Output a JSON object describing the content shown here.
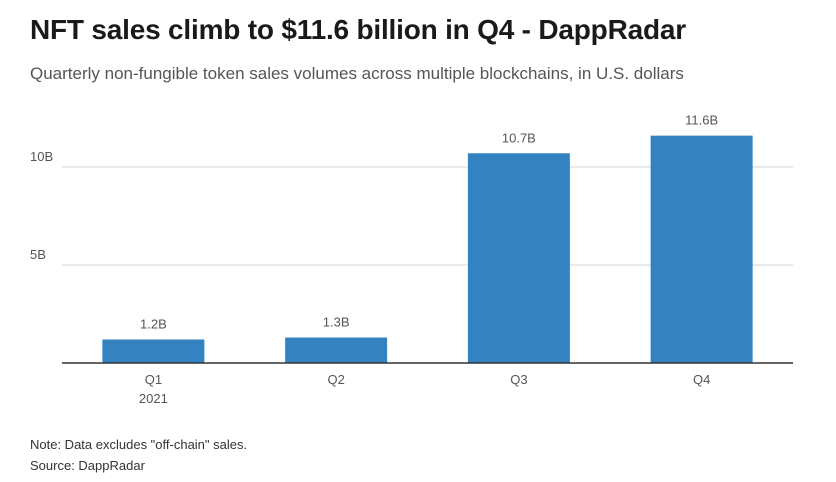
{
  "header": {
    "title": "NFT sales climb to $11.6 billion in Q4 - DappRadar",
    "subtitle": "Quarterly non-fungible token sales volumes across multiple blockchains, in U.S. dollars"
  },
  "footer": {
    "note": "Note: Data excludes \"off-chain\" sales.",
    "source": "Source: DappRadar"
  },
  "colors": {
    "bar": "#3482bf",
    "grid": "#d6d6d6",
    "axis": "#333333",
    "label": "#555555"
  },
  "chart_data": {
    "type": "bar",
    "title": "NFT sales climb to $11.6 billion in Q4 - DappRadar",
    "xlabel": "",
    "ylabel": "",
    "categories": [
      "Q1",
      "Q2",
      "Q3",
      "Q4"
    ],
    "category_sublabels": [
      "2021",
      "",
      "",
      ""
    ],
    "values": [
      1.2,
      1.3,
      10.7,
      11.6
    ],
    "value_labels": [
      "1.2B",
      "1.3B",
      "10.7B",
      "11.6B"
    ],
    "yticks": [
      5,
      10
    ],
    "ytick_labels": [
      "5B",
      "10B"
    ],
    "ylim": [
      0,
      12.5
    ],
    "grid": true,
    "legend": "none"
  }
}
